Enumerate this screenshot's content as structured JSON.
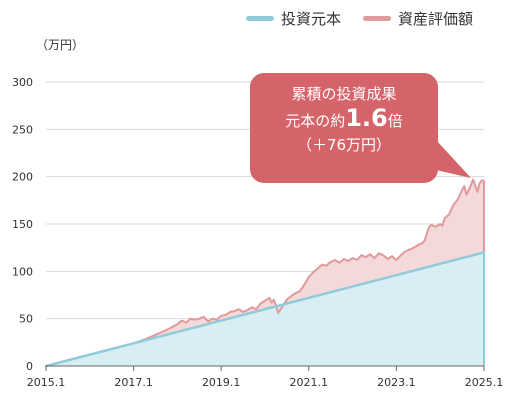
{
  "legend": [
    {
      "label": "投資元本",
      "color": "#8fcbd8"
    },
    {
      "label": "資産評価額",
      "color": "#e09a9c"
    }
  ],
  "callout": {
    "line1": "累積の投資成果",
    "line2_prefix": "元本の約",
    "line2_value": "1.6",
    "line2_suffix": "倍",
    "line3": "（＋76万円）",
    "color": "#d4646a"
  },
  "chart_data": {
    "type": "area",
    "ylabel": "（万円）",
    "ylim": [
      0,
      300
    ],
    "yticks": [
      0,
      50,
      100,
      150,
      200,
      250,
      300
    ],
    "xlim": [
      2015.0,
      2025.0
    ],
    "xticks": [
      {
        "value": 2015.0,
        "label": "2015.1"
      },
      {
        "value": 2017.0,
        "label": "2017.1"
      },
      {
        "value": 2019.0,
        "label": "2019.1"
      },
      {
        "value": 2021.0,
        "label": "2021.1"
      },
      {
        "value": 2023.0,
        "label": "2023.1"
      },
      {
        "value": 2025.0,
        "label": "2025.1"
      }
    ],
    "grid": true,
    "legend_position": "top-right",
    "series": [
      {
        "name": "投資元本",
        "color": "#8fcbd8",
        "fill": "#d9eef4",
        "points": [
          [
            2015.0,
            0
          ],
          [
            2025.0,
            120
          ]
        ]
      },
      {
        "name": "資産評価額",
        "color": "#e09a9c",
        "fill": "#f4d9da",
        "points": [
          [
            2015.0,
            0
          ],
          [
            2016.0,
            12
          ],
          [
            2016.5,
            18
          ],
          [
            2017.0,
            24
          ],
          [
            2017.25,
            28
          ],
          [
            2017.5,
            33
          ],
          [
            2017.75,
            38
          ],
          [
            2018.0,
            44
          ],
          [
            2018.1,
            48
          ],
          [
            2018.2,
            46
          ],
          [
            2018.3,
            50
          ],
          [
            2018.4,
            49
          ],
          [
            2018.5,
            50
          ],
          [
            2018.6,
            52
          ],
          [
            2018.7,
            47
          ],
          [
            2018.8,
            50
          ],
          [
            2018.9,
            49
          ],
          [
            2019.0,
            53
          ],
          [
            2019.1,
            54
          ],
          [
            2019.2,
            57
          ],
          [
            2019.3,
            58
          ],
          [
            2019.4,
            60
          ],
          [
            2019.5,
            57
          ],
          [
            2019.6,
            59
          ],
          [
            2019.7,
            62
          ],
          [
            2019.8,
            60
          ],
          [
            2019.9,
            66
          ],
          [
            2020.0,
            69
          ],
          [
            2020.1,
            72
          ],
          [
            2020.15,
            67
          ],
          [
            2020.2,
            70
          ],
          [
            2020.25,
            64
          ],
          [
            2020.3,
            56
          ],
          [
            2020.4,
            63
          ],
          [
            2020.5,
            70
          ],
          [
            2020.6,
            74
          ],
          [
            2020.7,
            77
          ],
          [
            2020.8,
            79
          ],
          [
            2020.9,
            86
          ],
          [
            2021.0,
            94
          ],
          [
            2021.1,
            99
          ],
          [
            2021.2,
            103
          ],
          [
            2021.3,
            107
          ],
          [
            2021.4,
            106
          ],
          [
            2021.5,
            110
          ],
          [
            2021.6,
            112
          ],
          [
            2021.7,
            109
          ],
          [
            2021.8,
            113
          ],
          [
            2021.9,
            111
          ],
          [
            2022.0,
            114
          ],
          [
            2022.1,
            112
          ],
          [
            2022.2,
            117
          ],
          [
            2022.3,
            115
          ],
          [
            2022.4,
            118
          ],
          [
            2022.5,
            114
          ],
          [
            2022.6,
            119
          ],
          [
            2022.7,
            117
          ],
          [
            2022.8,
            113
          ],
          [
            2022.9,
            116
          ],
          [
            2023.0,
            112
          ],
          [
            2023.1,
            117
          ],
          [
            2023.2,
            121
          ],
          [
            2023.3,
            123
          ],
          [
            2023.4,
            125
          ],
          [
            2023.5,
            128
          ],
          [
            2023.6,
            130
          ],
          [
            2023.65,
            133
          ],
          [
            2023.7,
            141
          ],
          [
            2023.75,
            147
          ],
          [
            2023.8,
            149
          ],
          [
            2023.9,
            147
          ],
          [
            2024.0,
            150
          ],
          [
            2024.05,
            148
          ],
          [
            2024.1,
            156
          ],
          [
            2024.2,
            160
          ],
          [
            2024.3,
            170
          ],
          [
            2024.4,
            176
          ],
          [
            2024.5,
            186
          ],
          [
            2024.55,
            190
          ],
          [
            2024.6,
            181
          ],
          [
            2024.7,
            191
          ],
          [
            2024.75,
            197
          ],
          [
            2024.8,
            191
          ],
          [
            2024.85,
            184
          ],
          [
            2024.9,
            193
          ],
          [
            2024.95,
            196
          ],
          [
            2025.0,
            196
          ]
        ]
      }
    ]
  }
}
